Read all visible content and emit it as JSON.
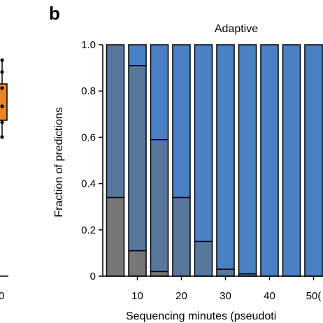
{
  "panel_label": "b",
  "left_panel": {
    "x_tick_partial": "0",
    "colors": {
      "box": "#e8852c",
      "line": "#000000"
    }
  },
  "chart_data": {
    "type": "bar",
    "stacked": true,
    "normalized": true,
    "title": "Adaptive",
    "xlabel": "Sequencing minutes (pseudoti",
    "ylabel": "Fraction of predictions",
    "ylim": [
      0,
      1.0
    ],
    "yticks": [
      "0",
      "0.2",
      "0.4",
      "0.6",
      "0.8",
      "1.0"
    ],
    "ytick_values": [
      0,
      0.2,
      0.4,
      0.6,
      0.8,
      1.0
    ],
    "categories": [
      5,
      10,
      15,
      20,
      25,
      30,
      35,
      40,
      45,
      50
    ],
    "xticks": [
      "10",
      "20",
      "30",
      "40",
      "50("
    ],
    "xtick_values": [
      10,
      20,
      30,
      40,
      50
    ],
    "series": [
      {
        "color": "#777777",
        "values": [
          0.34,
          0.11,
          0.02,
          0.0,
          0.0,
          0.0,
          0.0,
          0.0,
          0.0,
          0.0
        ]
      },
      {
        "color": "#58779c",
        "values": [
          0.66,
          0.8,
          0.57,
          0.34,
          0.15,
          0.03,
          0.01,
          0.0,
          0.0,
          0.0
        ]
      },
      {
        "color": "#4a80c4",
        "values": [
          0.0,
          0.09,
          0.41,
          0.66,
          0.85,
          0.97,
          0.99,
          1.0,
          1.0,
          1.0
        ]
      }
    ],
    "grid": false
  }
}
